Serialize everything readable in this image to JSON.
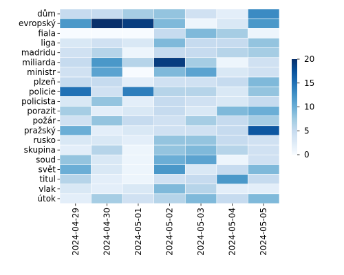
{
  "chart_data": {
    "type": "heatmap",
    "title": "",
    "xlabel": "",
    "ylabel": "",
    "x": [
      "2024-04-29",
      "2024-04-30",
      "2024-05-01",
      "2024-05-02",
      "2024-05-03",
      "2024-05-04",
      "2024-05-05"
    ],
    "y": [
      "dům",
      "evropský",
      "fiala",
      "liga",
      "madridu",
      "miliarda",
      "ministr",
      "plzeň",
      "policie",
      "policista",
      "porazit",
      "požár",
      "pražský",
      "rusko",
      "skupina",
      "soud",
      "svět",
      "titul",
      "vlak",
      "útok"
    ],
    "values": [
      [
        5,
        5,
        7,
        8,
        4,
        2,
        13
      ],
      [
        12,
        20,
        19,
        9,
        1,
        3,
        12
      ],
      [
        0,
        0,
        0,
        5,
        9,
        7,
        1
      ],
      [
        3,
        4,
        3,
        9,
        5,
        5,
        8
      ],
      [
        4,
        6,
        1,
        5,
        5,
        6,
        7
      ],
      [
        5,
        12,
        6,
        19,
        7,
        1,
        4
      ],
      [
        4,
        11,
        0,
        9,
        11,
        3,
        4
      ],
      [
        5,
        5,
        2,
        4,
        4,
        5,
        9
      ],
      [
        15,
        4,
        14,
        6,
        6,
        3,
        8
      ],
      [
        3,
        8,
        2,
        5,
        4,
        3,
        5
      ],
      [
        7,
        2,
        3,
        5,
        3,
        9,
        10
      ],
      [
        4,
        8,
        5,
        4,
        7,
        5,
        7
      ],
      [
        10,
        2,
        3,
        4,
        4,
        5,
        17
      ],
      [
        3,
        3,
        2,
        8,
        8,
        5,
        4
      ],
      [
        2,
        6,
        1,
        8,
        9,
        6,
        4
      ],
      [
        8,
        3,
        1,
        10,
        11,
        1,
        4
      ],
      [
        10,
        3,
        1,
        12,
        3,
        5,
        9
      ],
      [
        6,
        2,
        1,
        4,
        5,
        12,
        5
      ],
      [
        3,
        2,
        3,
        9,
        6,
        2,
        2
      ],
      [
        2,
        7,
        4,
        6,
        9,
        5,
        9
      ]
    ],
    "vmin": 0,
    "vmax": 20,
    "colormap": "Blues",
    "colorbar": {
      "ticks": [
        0,
        5,
        10,
        15,
        20
      ],
      "tick_labels": [
        "0",
        "5",
        "10",
        "15",
        "20"
      ]
    },
    "grid": false
  }
}
